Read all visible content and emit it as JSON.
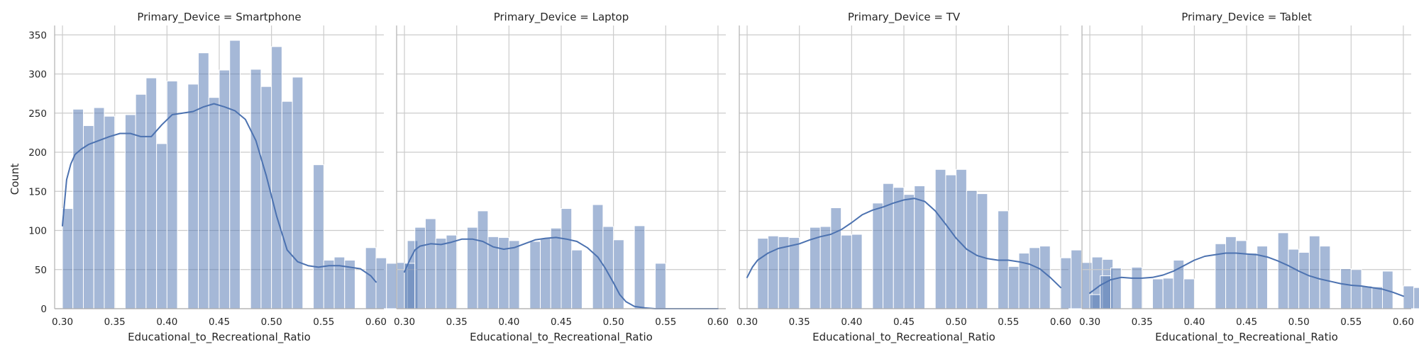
{
  "chart_data": {
    "type": "bar",
    "layout": "facet-grid-1x4",
    "ylabel": "Count",
    "ylim": [
      0,
      362
    ],
    "yticks": [
      0,
      50,
      100,
      150,
      200,
      250,
      300,
      350
    ],
    "xlim": [
      0.2925,
      0.6075
    ],
    "xticks": [
      "0.30",
      "0.35",
      "0.40",
      "0.45",
      "0.50",
      "0.55",
      "0.60"
    ],
    "bin_start": 0.3,
    "bin_width": 0.01,
    "grid": true,
    "colors": {
      "bar": "#4c72b0",
      "bar_opacity": 0.5,
      "kde": "#4c72b0",
      "grid": "#cccccc",
      "axis": "#b0b0b0"
    },
    "panels": [
      {
        "title": "Primary_Device = Smartphone",
        "xlabel": "Educational_to_Recreational_Ratio",
        "values": [
          128,
          255,
          234,
          257,
          246,
          0,
          248,
          274,
          295,
          211,
          291,
          0,
          287,
          327,
          270,
          305,
          343,
          0,
          306,
          284,
          335,
          265,
          296,
          0,
          184,
          62,
          66,
          62,
          0,
          78,
          65,
          58,
          59,
          87
        ],
        "kde": [
          [
            0.3,
            106
          ],
          [
            0.304,
            165
          ],
          [
            0.308,
            185
          ],
          [
            0.312,
            197
          ],
          [
            0.318,
            204
          ],
          [
            0.325,
            210
          ],
          [
            0.335,
            215
          ],
          [
            0.345,
            220
          ],
          [
            0.355,
            224
          ],
          [
            0.365,
            224
          ],
          [
            0.375,
            220
          ],
          [
            0.385,
            220
          ],
          [
            0.395,
            235
          ],
          [
            0.405,
            248
          ],
          [
            0.415,
            250
          ],
          [
            0.425,
            252
          ],
          [
            0.435,
            258
          ],
          [
            0.445,
            262
          ],
          [
            0.455,
            258
          ],
          [
            0.465,
            253
          ],
          [
            0.475,
            242
          ],
          [
            0.485,
            215
          ],
          [
            0.495,
            170
          ],
          [
            0.505,
            118
          ],
          [
            0.515,
            75
          ],
          [
            0.525,
            60
          ],
          [
            0.535,
            55
          ],
          [
            0.545,
            53
          ],
          [
            0.555,
            55
          ],
          [
            0.565,
            55
          ],
          [
            0.575,
            53
          ],
          [
            0.585,
            51
          ],
          [
            0.595,
            42
          ],
          [
            0.6,
            34
          ]
        ]
      },
      {
        "title": "Primary_Device = Laptop",
        "xlabel": "Educational_to_Recreational_Ratio",
        "values": [
          58,
          104,
          115,
          90,
          94,
          0,
          104,
          125,
          92,
          91,
          87,
          0,
          86,
          90,
          103,
          128,
          75,
          0,
          133,
          105,
          88,
          0,
          106,
          0,
          58,
          0,
          0,
          0,
          0,
          0,
          0,
          0,
          0,
          0
        ],
        "kde": [
          [
            0.3,
            47
          ],
          [
            0.305,
            62
          ],
          [
            0.31,
            75
          ],
          [
            0.315,
            80
          ],
          [
            0.325,
            83
          ],
          [
            0.335,
            82
          ],
          [
            0.345,
            85
          ],
          [
            0.355,
            89
          ],
          [
            0.365,
            89
          ],
          [
            0.375,
            86
          ],
          [
            0.385,
            79
          ],
          [
            0.395,
            76
          ],
          [
            0.405,
            78
          ],
          [
            0.415,
            83
          ],
          [
            0.425,
            88
          ],
          [
            0.435,
            90
          ],
          [
            0.445,
            91
          ],
          [
            0.455,
            89
          ],
          [
            0.465,
            86
          ],
          [
            0.475,
            78
          ],
          [
            0.485,
            66
          ],
          [
            0.492,
            52
          ],
          [
            0.5,
            33
          ],
          [
            0.506,
            18
          ],
          [
            0.512,
            9
          ],
          [
            0.52,
            3
          ],
          [
            0.53,
            1
          ],
          [
            0.54,
            0
          ],
          [
            0.56,
            0
          ],
          [
            0.58,
            0
          ],
          [
            0.6,
            0
          ]
        ]
      },
      {
        "title": "Primary_Device = TV",
        "xlabel": "Educational_to_Recreational_Ratio",
        "values": [
          0,
          90,
          93,
          92,
          91,
          0,
          104,
          105,
          129,
          94,
          95,
          0,
          135,
          160,
          155,
          146,
          157,
          0,
          178,
          171,
          178,
          151,
          147,
          0,
          125,
          54,
          71,
          78,
          80,
          0,
          65,
          75,
          59,
          66,
          63
        ],
        "kde": [
          [
            0.3,
            40
          ],
          [
            0.305,
            53
          ],
          [
            0.31,
            62
          ],
          [
            0.32,
            71
          ],
          [
            0.33,
            77
          ],
          [
            0.34,
            80
          ],
          [
            0.35,
            83
          ],
          [
            0.36,
            88
          ],
          [
            0.37,
            92
          ],
          [
            0.38,
            95
          ],
          [
            0.39,
            101
          ],
          [
            0.4,
            110
          ],
          [
            0.41,
            120
          ],
          [
            0.42,
            126
          ],
          [
            0.43,
            130
          ],
          [
            0.44,
            135
          ],
          [
            0.45,
            139
          ],
          [
            0.46,
            141
          ],
          [
            0.47,
            137
          ],
          [
            0.48,
            125
          ],
          [
            0.49,
            108
          ],
          [
            0.5,
            90
          ],
          [
            0.51,
            76
          ],
          [
            0.52,
            68
          ],
          [
            0.53,
            64
          ],
          [
            0.54,
            62
          ],
          [
            0.55,
            62
          ],
          [
            0.56,
            60
          ],
          [
            0.57,
            57
          ],
          [
            0.58,
            51
          ],
          [
            0.59,
            40
          ],
          [
            0.6,
            27
          ]
        ]
      },
      {
        "title": "Primary_Device = Tablet",
        "xlabel": "Educational_to_Recreational_Ratio",
        "values": [
          18,
          42,
          52,
          0,
          53,
          0,
          38,
          39,
          62,
          38,
          0,
          0,
          83,
          92,
          87,
          71,
          80,
          0,
          97,
          76,
          72,
          93,
          80,
          0,
          51,
          50,
          29,
          28,
          48,
          0,
          29,
          27,
          38,
          28,
          35
        ],
        "kde": [
          [
            0.3,
            20
          ],
          [
            0.31,
            30
          ],
          [
            0.32,
            37
          ],
          [
            0.33,
            40
          ],
          [
            0.34,
            39
          ],
          [
            0.35,
            39
          ],
          [
            0.36,
            40
          ],
          [
            0.37,
            43
          ],
          [
            0.38,
            48
          ],
          [
            0.39,
            55
          ],
          [
            0.4,
            62
          ],
          [
            0.41,
            67
          ],
          [
            0.42,
            69
          ],
          [
            0.43,
            71
          ],
          [
            0.44,
            71
          ],
          [
            0.45,
            70
          ],
          [
            0.46,
            69
          ],
          [
            0.47,
            66
          ],
          [
            0.48,
            61
          ],
          [
            0.49,
            55
          ],
          [
            0.5,
            48
          ],
          [
            0.51,
            42
          ],
          [
            0.52,
            38
          ],
          [
            0.53,
            35
          ],
          [
            0.54,
            32
          ],
          [
            0.55,
            30
          ],
          [
            0.56,
            29
          ],
          [
            0.57,
            27
          ],
          [
            0.58,
            25
          ],
          [
            0.59,
            21
          ],
          [
            0.6,
            16
          ]
        ]
      }
    ]
  }
}
